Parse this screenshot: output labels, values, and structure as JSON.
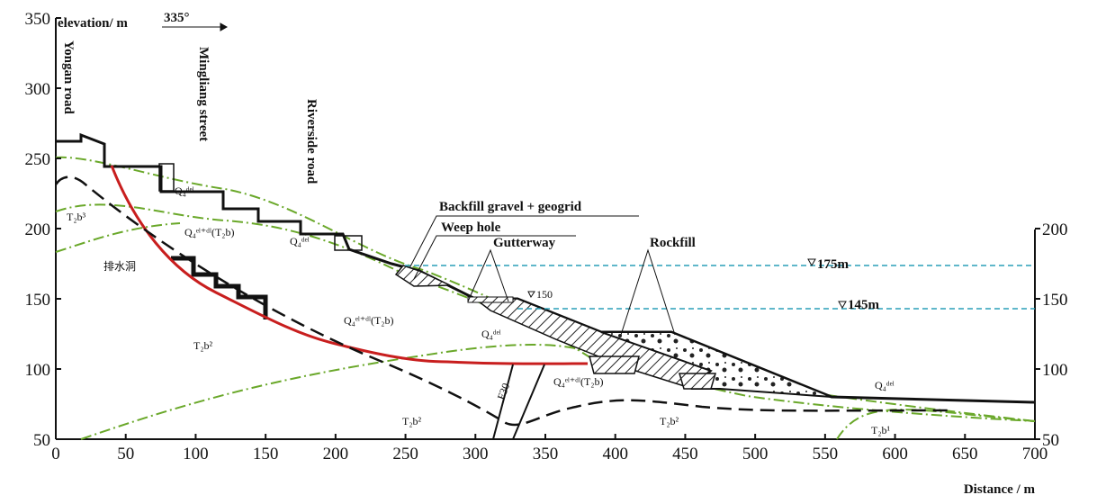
{
  "axes": {
    "y_label": "elevation/ m",
    "x_label": "Distance / m",
    "direction": "335°",
    "xlim": [
      0,
      700
    ],
    "xticks": [
      0,
      50,
      100,
      150,
      200,
      250,
      300,
      350,
      400,
      450,
      500,
      550,
      600,
      650,
      700
    ],
    "ylim": [
      50,
      350
    ],
    "yticks": [
      50,
      100,
      150,
      200,
      250,
      300,
      350
    ],
    "y2ticks": [
      50,
      100,
      150,
      200
    ]
  },
  "roads": [
    "Yongan road",
    "Mingliang street",
    "Riverside road"
  ],
  "labels": {
    "backfill": "Backfill gravel + geogrid",
    "weep_hole": "Weep hole",
    "gutterway": "Gutterway",
    "rockfill": "Rockfill",
    "drain_tunnel": "排水洞",
    "fault": "F30"
  },
  "water_levels": [
    "175m",
    "145m",
    "150"
  ],
  "strata": [
    "Q₄ᵈᵉˡ",
    "Q₄ᵉˡ⁺ᵈˡ(T₂b)",
    "Q₄ᵈᵉˡ",
    "Q₄ᵉˡ⁺ᵈˡ(T₂b)",
    "Q₄ᵈᵉˡ",
    "Q₄ᵉˡ⁺ᵈˡ(T₂b)",
    "Q₄ᵈᵉˡ",
    "T₂b³",
    "T₂b²",
    "T₂b²",
    "T₂b²",
    "T₂b¹"
  ]
}
